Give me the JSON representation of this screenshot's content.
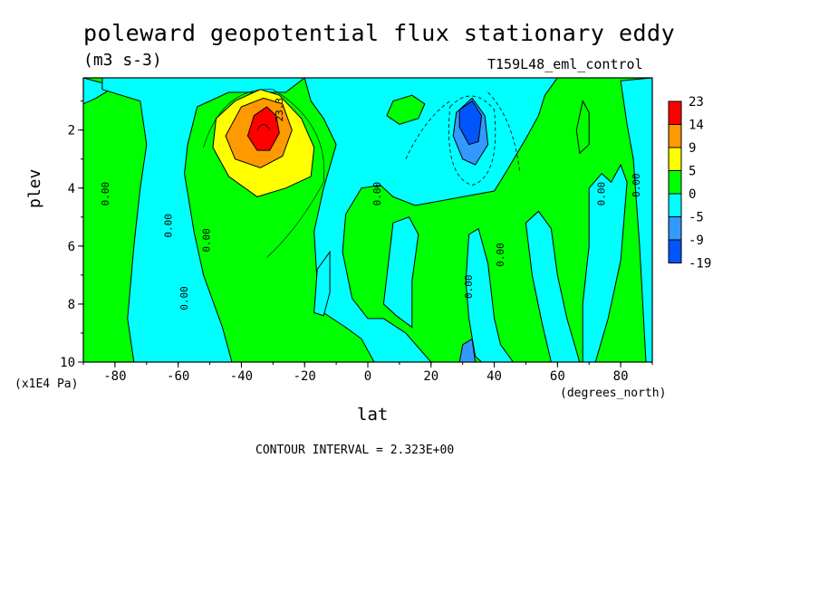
{
  "title": "poleward geopotential flux stationary eddy",
  "units": "(m3 s-3)",
  "run_label": "T159L48_eml_control",
  "xlabel": "lat",
  "xunits": "(degrees_north)",
  "ylabel": "plev",
  "yunits": "(x1E4 Pa)",
  "contour_interval": "CONTOUR INTERVAL = 2.323E+00",
  "contour_labels": [
    "0.00",
    "0.00",
    "0.00",
    "0.00",
    "0.00",
    "0.00",
    "0.00",
    "0.00",
    "0.00",
    "23.3"
  ],
  "chart_data": {
    "type": "heatmap",
    "title": "poleward geopotential flux stationary eddy",
    "xlabel": "lat",
    "ylabel": "plev",
    "xlim": [
      -90,
      90
    ],
    "ylim": [
      10,
      0.2
    ],
    "x_ticks": [
      -80,
      -60,
      -40,
      -20,
      0,
      20,
      40,
      60,
      80
    ],
    "y_ticks": [
      2,
      4,
      6,
      8,
      10
    ],
    "colorbar": {
      "labels": [
        "23",
        "14",
        "9",
        "5",
        "0",
        "-5",
        "-9",
        "-19"
      ],
      "colors": [
        "#ff0000",
        "#ff9900",
        "#ffff00",
        "#00ff00",
        "#00ffff",
        "#3399ff",
        "#0055ff"
      ]
    },
    "regions": [
      {
        "level": "positive (0 to 5)",
        "color": "#00ff00",
        "outline": [
          [
            -90,
            0.2
          ],
          [
            90,
            0.2
          ],
          [
            90,
            10
          ],
          [
            -90,
            10
          ]
        ]
      },
      {
        "level": "negative (-5 to 0)",
        "color": "#00ffff",
        "outline": [
          [
            -90,
            0.2
          ],
          [
            -80,
            0.5
          ],
          [
            -86,
            0.9
          ],
          [
            -90,
            1.1
          ]
        ]
      },
      {
        "level": "negative (-5 to 0)",
        "color": "#00ffff",
        "outline": [
          [
            -84,
            0.2
          ],
          [
            -20,
            0.2
          ],
          [
            -26,
            0.7
          ],
          [
            -44,
            0.7
          ],
          [
            -54,
            1.2
          ],
          [
            -57,
            2.5
          ],
          [
            -58,
            3.5
          ],
          [
            -55,
            5.5
          ],
          [
            -52,
            7
          ],
          [
            -46,
            8.8
          ],
          [
            -43,
            10
          ],
          [
            -74,
            10
          ],
          [
            -76,
            8.5
          ],
          [
            -74,
            6
          ],
          [
            -72,
            4
          ],
          [
            -70,
            2.5
          ],
          [
            -72,
            1
          ],
          [
            -84,
            0.6
          ]
        ]
      },
      {
        "level": "negative (-5 to 0)",
        "color": "#00ffff",
        "outline": [
          [
            -20,
            0.2
          ],
          [
            60,
            0.2
          ],
          [
            56,
            0.8
          ],
          [
            54,
            1.5
          ],
          [
            50,
            2.3
          ],
          [
            44,
            3.4
          ],
          [
            40,
            4.1
          ],
          [
            15,
            4.6
          ],
          [
            8,
            4.3
          ],
          [
            4,
            3.9
          ],
          [
            -2,
            4.0
          ],
          [
            -7,
            4.9
          ],
          [
            -8,
            6.2
          ],
          [
            -5,
            7.8
          ],
          [
            0,
            8.5
          ],
          [
            5,
            8.5
          ],
          [
            12,
            9.0
          ],
          [
            16,
            9.5
          ],
          [
            20,
            10
          ],
          [
            2,
            10
          ],
          [
            -2,
            9.2
          ],
          [
            -7,
            8.8
          ],
          [
            -14,
            8.3
          ],
          [
            -16,
            7.3
          ],
          [
            -17,
            5.5
          ],
          [
            -14,
            4.0
          ],
          [
            -10,
            2.5
          ],
          [
            -14,
            1.6
          ],
          [
            -18,
            1.0
          ]
        ]
      },
      {
        "level": "negative (-5 to 0)",
        "color": "#00ffff",
        "outline": [
          [
            -16,
            6.8
          ],
          [
            -12,
            6.2
          ],
          [
            -12,
            7.6
          ],
          [
            -14,
            8.4
          ],
          [
            -17,
            8.3
          ]
        ]
      },
      {
        "level": "negative (-5 to 0)",
        "color": "#00ffff",
        "outline": [
          [
            8,
            5.2
          ],
          [
            13,
            5.0
          ],
          [
            16,
            5.6
          ],
          [
            14,
            7.2
          ],
          [
            14,
            8.8
          ],
          [
            9,
            8.4
          ],
          [
            5,
            8.0
          ]
        ]
      },
      {
        "level": "negative (-5 to 0)",
        "color": "#00ffff",
        "outline": [
          [
            32,
            5.6
          ],
          [
            35,
            5.4
          ],
          [
            38,
            6.6
          ],
          [
            40,
            8.5
          ],
          [
            42,
            9.4
          ],
          [
            46,
            10
          ],
          [
            36,
            10
          ],
          [
            34,
            9.8
          ],
          [
            32,
            8.5
          ],
          [
            31,
            7.2
          ]
        ]
      },
      {
        "level": "negative (-5 to 0)",
        "color": "#00ffff",
        "outline": [
          [
            50,
            5.2
          ],
          [
            54,
            4.8
          ],
          [
            58,
            5.4
          ],
          [
            60,
            7.0
          ],
          [
            63,
            8.5
          ],
          [
            67,
            10
          ],
          [
            58,
            10
          ],
          [
            55,
            8.6
          ],
          [
            52,
            7.0
          ]
        ]
      },
      {
        "level": "negative (-5 to 0)",
        "color": "#00ffff",
        "outline": [
          [
            70,
            4.0
          ],
          [
            74,
            3.5
          ],
          [
            77,
            3.8
          ],
          [
            80,
            3.2
          ],
          [
            82,
            3.8
          ],
          [
            80,
            6.5
          ],
          [
            76,
            8.5
          ],
          [
            72,
            10
          ],
          [
            68,
            10
          ],
          [
            68,
            8.0
          ],
          [
            70,
            6.0
          ]
        ]
      },
      {
        "level": "negative (-5 to 0)",
        "color": "#00ffff",
        "outline": [
          [
            80,
            0.3
          ],
          [
            90,
            0.2
          ],
          [
            90,
            10
          ],
          [
            88,
            10
          ],
          [
            86,
            6.0
          ],
          [
            84,
            3.0
          ],
          [
            82,
            1.8
          ]
        ]
      },
      {
        "level": "positive (0 to 5)",
        "color": "#00ff00",
        "outline": [
          [
            8,
            1.0
          ],
          [
            14,
            0.8
          ],
          [
            18,
            1.1
          ],
          [
            16,
            1.6
          ],
          [
            10,
            1.8
          ],
          [
            6,
            1.5
          ]
        ]
      },
      {
        "level": "positive (0 to 5)",
        "color": "#00ff00",
        "outline": [
          [
            66,
            2.0
          ],
          [
            68,
            1.0
          ],
          [
            70,
            1.4
          ],
          [
            70,
            2.5
          ],
          [
            67,
            2.8
          ]
        ]
      },
      {
        "level": "negative (-9 to -5)",
        "color": "#3399ff",
        "outline": [
          [
            28,
            1.4
          ],
          [
            33,
            0.9
          ],
          [
            37,
            1.5
          ],
          [
            38,
            2.5
          ],
          [
            34,
            3.2
          ],
          [
            30,
            3.0
          ],
          [
            27,
            2.2
          ]
        ]
      },
      {
        "level": "negative (-19 to -9)",
        "color": "#0055ff",
        "outline": [
          [
            29,
            1.3
          ],
          [
            33,
            1.0
          ],
          [
            36,
            1.5
          ],
          [
            35,
            2.4
          ],
          [
            32,
            2.5
          ],
          [
            29,
            1.9
          ]
        ]
      },
      {
        "level": "negative (-9 to -5)",
        "color": "#3399ff",
        "outline": [
          [
            30,
            9.4
          ],
          [
            33,
            9.2
          ],
          [
            34,
            10
          ],
          [
            29,
            10
          ]
        ]
      },
      {
        "level": "positive (5 to 9)",
        "color": "#ffff00",
        "outline": [
          [
            -42,
            1.0
          ],
          [
            -34,
            0.6
          ],
          [
            -28,
            0.8
          ],
          [
            -21,
            1.6
          ],
          [
            -17,
            2.6
          ],
          [
            -18,
            3.6
          ],
          [
            -26,
            4.0
          ],
          [
            -35,
            4.3
          ],
          [
            -44,
            3.6
          ],
          [
            -49,
            2.6
          ],
          [
            -48,
            1.6
          ]
        ]
      },
      {
        "level": "positive (9 to 14)",
        "color": "#ff9900",
        "outline": [
          [
            -40,
            1.2
          ],
          [
            -33,
            0.9
          ],
          [
            -27,
            1.1
          ],
          [
            -24,
            2.0
          ],
          [
            -27,
            2.9
          ],
          [
            -34,
            3.3
          ],
          [
            -42,
            3.0
          ],
          [
            -45,
            2.2
          ]
        ]
      },
      {
        "level": "positive (14 to 23)",
        "color": "#ff0000",
        "outline": [
          [
            -36,
            1.5
          ],
          [
            -32,
            1.2
          ],
          [
            -29,
            1.5
          ],
          [
            -28,
            2.1
          ],
          [
            -31,
            2.7
          ],
          [
            -35,
            2.7
          ],
          [
            -38,
            2.2
          ]
        ]
      }
    ]
  }
}
